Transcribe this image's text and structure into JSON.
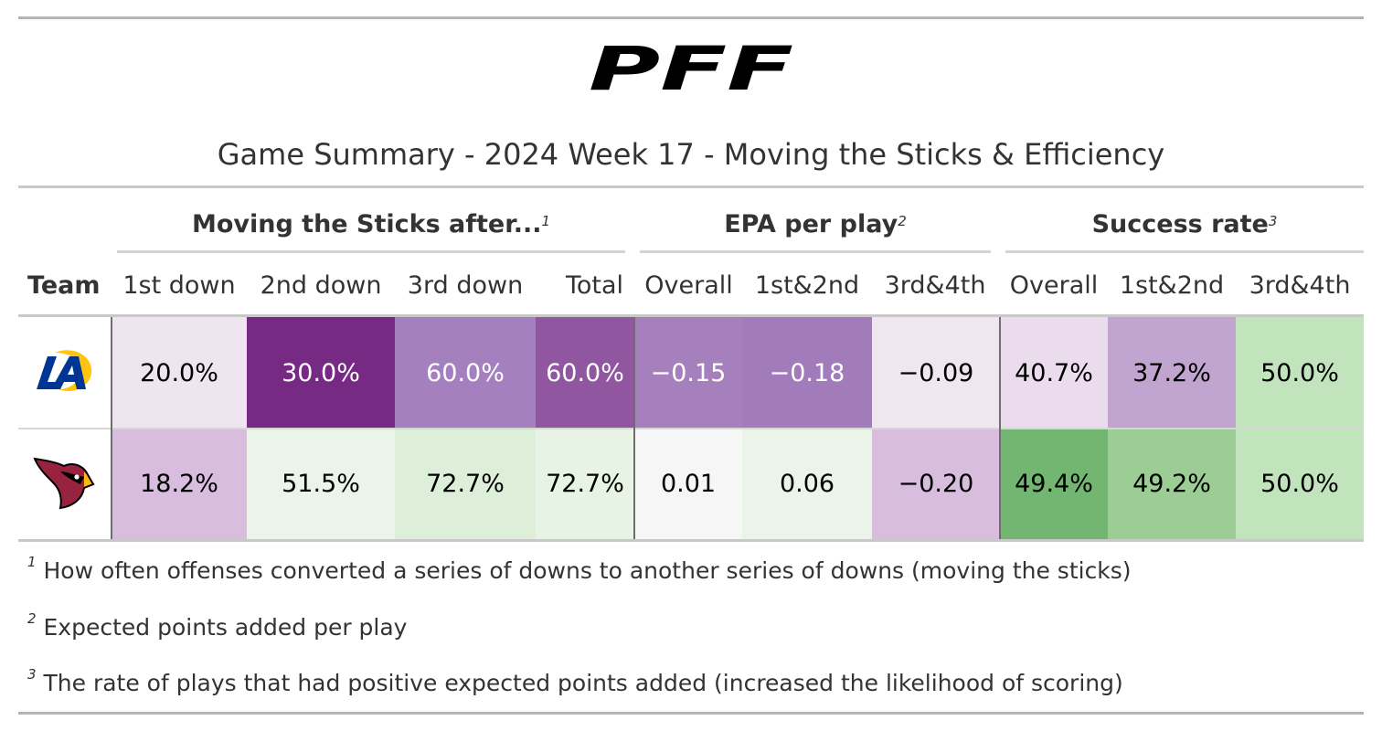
{
  "title": "Game Summary - 2024 Week 17 - Moving the Sticks & Efficiency",
  "logo_text": "PFF",
  "spanners": [
    {
      "label": "Moving the Sticks after...",
      "footnote": "1"
    },
    {
      "label": "EPA per play",
      "footnote": "2"
    },
    {
      "label": "Success rate",
      "footnote": "3"
    }
  ],
  "columns": {
    "team": "Team",
    "labels": [
      "1st down",
      "2nd down",
      "3rd down",
      "Total",
      "Overall",
      "1st&2nd",
      "3rd&4th",
      "Overall",
      "1st&2nd",
      "3rd&4th"
    ]
  },
  "rows": [
    {
      "team_icon": "rams-logo-icon",
      "cells": [
        {
          "value": "20.0%",
          "bg": "#efe5f1",
          "fg": "#000000"
        },
        {
          "value": "30.0%",
          "bg": "#762a83",
          "fg": "#ffffff"
        },
        {
          "value": "60.0%",
          "bg": "#a580be",
          "fg": "#ffffff"
        },
        {
          "value": "60.0%",
          "bg": "#90569f",
          "fg": "#ffffff"
        },
        {
          "value": "−0.15",
          "bg": "#a680bd",
          "fg": "#ffffff"
        },
        {
          "value": "−0.18",
          "bg": "#a27bbb",
          "fg": "#ffffff"
        },
        {
          "value": "−0.09",
          "bg": "#efe6f0",
          "fg": "#000000"
        },
        {
          "value": "40.7%",
          "bg": "#eadcec",
          "fg": "#000000"
        },
        {
          "value": "37.2%",
          "bg": "#c1a4cf",
          "fg": "#000000"
        },
        {
          "value": "50.0%",
          "bg": "#c1e4bd",
          "fg": "#000000"
        }
      ]
    },
    {
      "team_icon": "cardinals-logo-icon",
      "cells": [
        {
          "value": "18.2%",
          "bg": "#d9bddf",
          "fg": "#000000"
        },
        {
          "value": "51.5%",
          "bg": "#eaf4e8",
          "fg": "#000000"
        },
        {
          "value": "72.7%",
          "bg": "#ddefd9",
          "fg": "#000000"
        },
        {
          "value": "72.7%",
          "bg": "#e7f3e4",
          "fg": "#000000"
        },
        {
          "value": "0.01",
          "bg": "#f6f6f6",
          "fg": "#000000"
        },
        {
          "value": "0.06",
          "bg": "#eaf4e8",
          "fg": "#000000"
        },
        {
          "value": "−0.20",
          "bg": "#d9bddf",
          "fg": "#000000"
        },
        {
          "value": "49.4%",
          "bg": "#72b672",
          "fg": "#000000"
        },
        {
          "value": "49.2%",
          "bg": "#9bcd95",
          "fg": "#000000"
        },
        {
          "value": "50.0%",
          "bg": "#c1e4bd",
          "fg": "#000000"
        }
      ]
    }
  ],
  "footnotes": [
    {
      "mark": "1",
      "text": "How often offenses converted a series of downs to another series of downs (moving the sticks)"
    },
    {
      "mark": "2",
      "text": "Expected points added per play"
    },
    {
      "mark": "3",
      "text": "The rate of plays that had positive expected points added (increased the likelihood of scoring)"
    }
  ],
  "chart_data": {
    "type": "table",
    "title": "Game Summary - 2024 Week 17 - Moving the Sticks & Efficiency",
    "column_groups": [
      {
        "name": "Moving the Sticks after...",
        "columns": [
          "1st down",
          "2nd down",
          "3rd down",
          "Total"
        ]
      },
      {
        "name": "EPA per play",
        "columns": [
          "Overall",
          "1st&2nd",
          "3rd&4th"
        ]
      },
      {
        "name": "Success rate",
        "columns": [
          "Overall",
          "1st&2nd",
          "3rd&4th"
        ]
      }
    ],
    "rows": [
      {
        "team_icon": "rams-logo-icon",
        "values": [
          20.0,
          30.0,
          60.0,
          60.0,
          -0.15,
          -0.18,
          -0.09,
          40.7,
          37.2,
          50.0
        ]
      },
      {
        "team_icon": "cardinals-logo-icon",
        "values": [
          18.2,
          51.5,
          72.7,
          72.7,
          0.01,
          0.06,
          -0.2,
          49.4,
          49.2,
          50.0
        ]
      }
    ]
  }
}
